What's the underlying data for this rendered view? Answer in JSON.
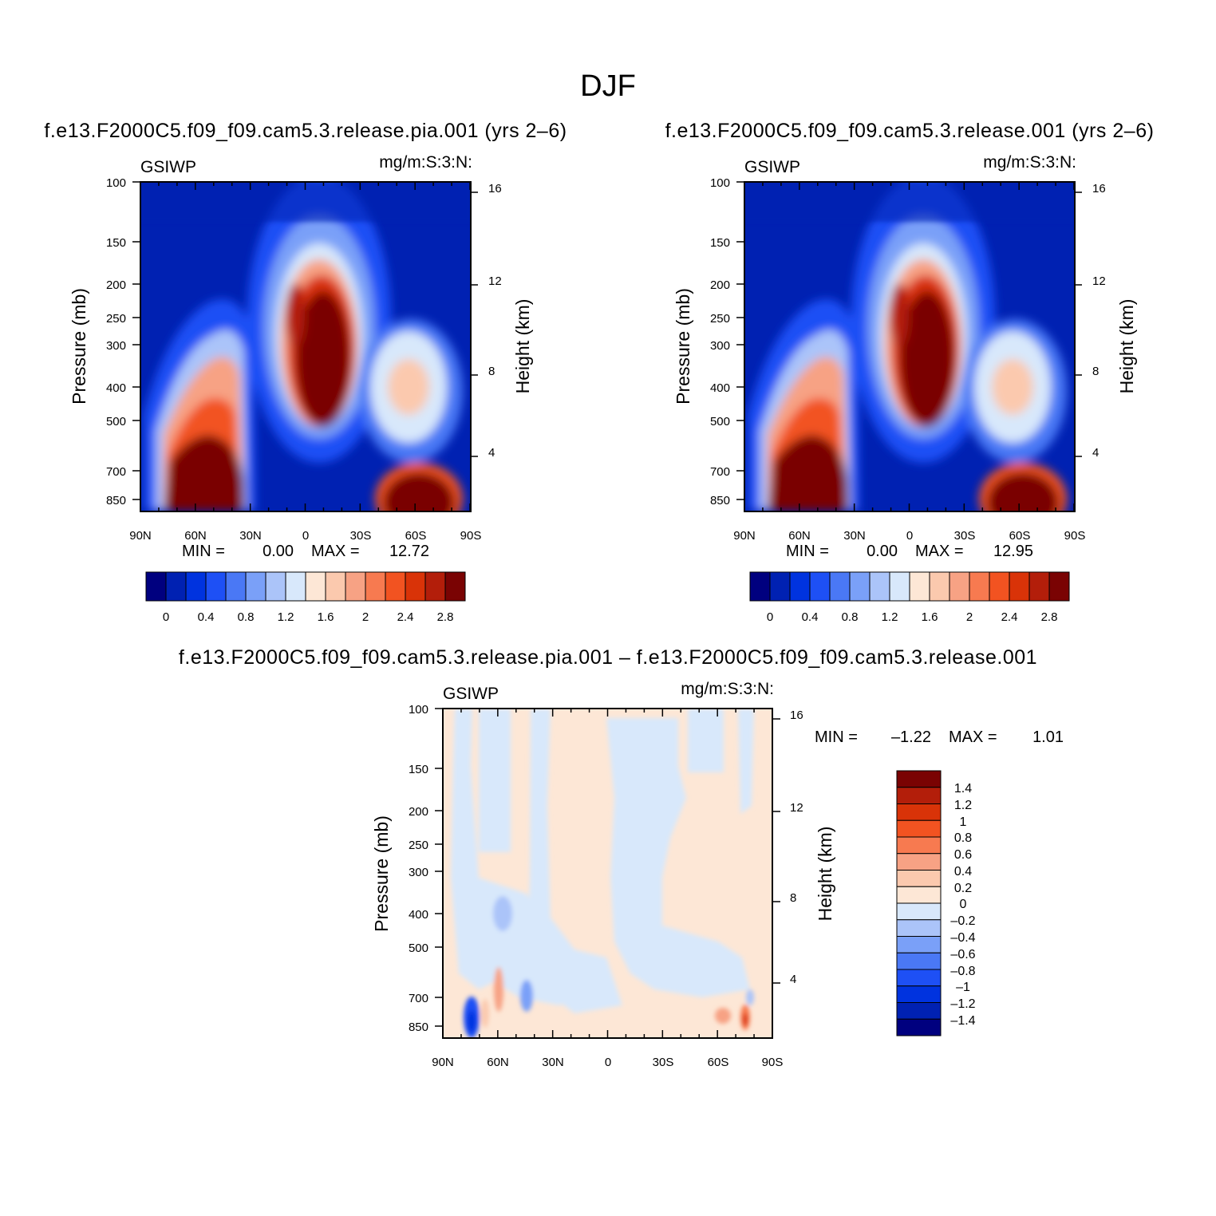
{
  "figure_title": "DJF",
  "colors": {
    "cmap12": [
      "#00007f",
      "#0021b2",
      "#0033df",
      "#1e50f5",
      "#4a78f5",
      "#7aa0f8",
      "#abc4f9",
      "#d8e8fb",
      "#fde7d6",
      "#fbc9ae",
      "#f7a284",
      "#f77a50",
      "#f25321",
      "#d93308",
      "#b31e0a",
      "#7a0303"
    ],
    "cmap3": [
      "#00007f",
      "#0021b2",
      "#0033df",
      "#1e50f5",
      "#4a78f5",
      "#7aa0f8",
      "#abc4f9",
      "#d8e8fb",
      "#fde7d6",
      "#fbc9ae",
      "#f7a284",
      "#f77a50",
      "#f25321",
      "#d93308",
      "#b31e0a",
      "#7a0303"
    ]
  },
  "chart_data": [
    {
      "id": "panel_pia",
      "type": "heatmap",
      "title": "f.e13.F2000C5.f09_f09.cam5.3.release.pia.001 (yrs 2–6)",
      "variable": "GSIWP",
      "units": "mg/m:S:3:N:",
      "xlabel": "",
      "ylabel": "Pressure (mb)",
      "y2label": "Height (km)",
      "x_ticks": [
        "90N",
        "60N",
        "30N",
        "0",
        "30S",
        "60S",
        "90S"
      ],
      "y_ticks": [
        "100",
        "150",
        "200",
        "250",
        "300",
        "400",
        "500",
        "700",
        "850"
      ],
      "y2_ticks": [
        "16",
        "12",
        "8",
        "4"
      ],
      "min_label": "MIN =",
      "min_value": "0.00",
      "max_label": "MAX =",
      "max_value": "12.72",
      "colorbar_labels": [
        "0",
        "0.4",
        "0.8",
        "1.2",
        "1.6",
        "2",
        "2.4",
        "2.8"
      ],
      "colorbar_levels": [
        0,
        0.2,
        0.4,
        0.6,
        0.8,
        1.0,
        1.2,
        1.4,
        1.6,
        1.8,
        2.0,
        2.2,
        2.4,
        2.6,
        2.8
      ],
      "ylim": [
        100,
        925
      ]
    },
    {
      "id": "panel_ctrl",
      "type": "heatmap",
      "title": "f.e13.F2000C5.f09_f09.cam5.3.release.001 (yrs 2–6)",
      "variable": "GSIWP",
      "units": "mg/m:S:3:N:",
      "xlabel": "",
      "ylabel": "Pressure (mb)",
      "y2label": "Height (km)",
      "x_ticks": [
        "90N",
        "60N",
        "30N",
        "0",
        "30S",
        "60S",
        "90S"
      ],
      "y_ticks": [
        "100",
        "150",
        "200",
        "250",
        "300",
        "400",
        "500",
        "700",
        "850"
      ],
      "y2_ticks": [
        "16",
        "12",
        "8",
        "4"
      ],
      "min_label": "MIN =",
      "min_value": "0.00",
      "max_label": "MAX =",
      "max_value": "12.95",
      "colorbar_labels": [
        "0",
        "0.4",
        "0.8",
        "1.2",
        "1.6",
        "2",
        "2.4",
        "2.8"
      ],
      "colorbar_levels": [
        0,
        0.2,
        0.4,
        0.6,
        0.8,
        1.0,
        1.2,
        1.4,
        1.6,
        1.8,
        2.0,
        2.2,
        2.4,
        2.6,
        2.8
      ],
      "ylim": [
        100,
        925
      ]
    },
    {
      "id": "panel_diff",
      "type": "heatmap",
      "title": "f.e13.F2000C5.f09_f09.cam5.3.release.pia.001 – f.e13.F2000C5.f09_f09.cam5.3.release.001",
      "variable": "GSIWP",
      "units": "mg/m:S:3:N:",
      "xlabel": "",
      "ylabel": "Pressure (mb)",
      "y2label": "Height (km)",
      "x_ticks": [
        "90N",
        "60N",
        "30N",
        "0",
        "30S",
        "60S",
        "90S"
      ],
      "y_ticks": [
        "100",
        "150",
        "200",
        "250",
        "300",
        "400",
        "500",
        "700",
        "850"
      ],
      "y2_ticks": [
        "16",
        "12",
        "8",
        "4"
      ],
      "min_label": "MIN =",
      "min_value": "–1.22",
      "max_label": "MAX =",
      "max_value": "1.01",
      "colorbar_labels": [
        "1.4",
        "1.2",
        "1",
        "0.8",
        "0.6",
        "0.4",
        "0.2",
        "0",
        "–0.2",
        "–0.4",
        "–0.6",
        "–0.8",
        "–1",
        "–1.2",
        "–1.4"
      ],
      "colorbar_levels": [
        1.4,
        1.2,
        1.0,
        0.8,
        0.6,
        0.4,
        0.2,
        0,
        -0.2,
        -0.4,
        -0.6,
        -0.8,
        -1.0,
        -1.2,
        -1.4
      ],
      "ylim": [
        100,
        925
      ]
    }
  ]
}
